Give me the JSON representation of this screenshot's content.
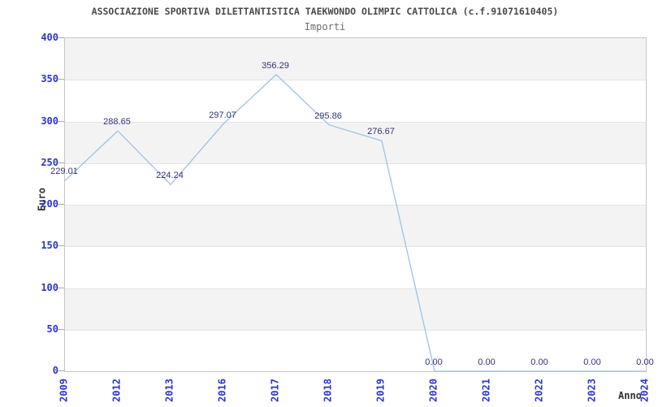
{
  "chart_data": {
    "type": "line",
    "title": "ASSOCIAZIONE SPORTIVA DILETTANTISTICA TAEKWONDO OLIMPIC CATTOLICA (c.f.91071610405)",
    "subtitle": "Importi",
    "xlabel": "Anno",
    "ylabel": "Euro",
    "categories": [
      "2009",
      "2012",
      "2013",
      "2016",
      "2017",
      "2018",
      "2019",
      "2020",
      "2021",
      "2022",
      "2023",
      "2024"
    ],
    "series": [
      {
        "name": "Importi",
        "values": [
          229.01,
          288.65,
          224.24,
          297.07,
          356.29,
          295.86,
          276.67,
          0.0,
          0.0,
          0.0,
          0.0,
          0.0
        ],
        "value_labels": [
          "229.01",
          "288.65",
          "224.24",
          "297.07",
          "356.29",
          "295.86",
          "276.67",
          "0.00",
          "0.00",
          "0.00",
          "0.00",
          "0.00"
        ]
      }
    ],
    "ylim": [
      0,
      400
    ],
    "yticks": [
      400,
      350,
      300,
      250,
      200,
      150,
      100,
      50,
      0
    ],
    "grid": "horizontal-alternating-bands",
    "legend": "none",
    "colors": {
      "line": "#9cc3e6",
      "value_label": "#32327a",
      "tick_label": "#2b35cc",
      "band_alt": "#f3f3f3",
      "band_main": "#ffffff",
      "gridline": "#e4e4e4",
      "plot_border": "#c6c6c6",
      "title": "#4a4a4a",
      "subtitle": "#6e6e6e",
      "axis_title": "#333333"
    }
  }
}
